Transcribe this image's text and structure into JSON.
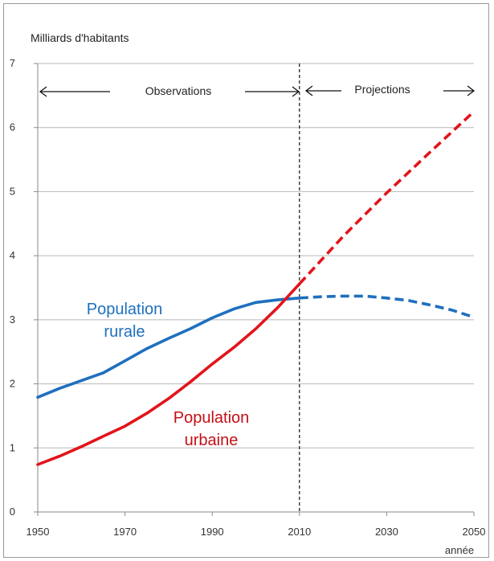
{
  "chart_data": {
    "type": "line",
    "ylabel": "Milliards d'habitants",
    "xlabel": "année",
    "xlim": [
      1950,
      2050
    ],
    "ylim": [
      0,
      7
    ],
    "x_ticks": [
      1950,
      1970,
      1990,
      2010,
      2030,
      2050
    ],
    "y_ticks": [
      0,
      1,
      2,
      3,
      4,
      5,
      6,
      7
    ],
    "grid": "horizontal",
    "divider_year": 2010,
    "annotations": {
      "observations": "Observations",
      "projections": "Projections"
    },
    "series": [
      {
        "name": "Population rurale",
        "label_lines": [
          "Population",
          "rurale"
        ],
        "color": "#1f6fbf",
        "observed": {
          "x": [
            1950,
            1955,
            1960,
            1965,
            1970,
            1975,
            1980,
            1985,
            1990,
            1995,
            2000,
            2005,
            2010
          ],
          "y": [
            1.79,
            1.93,
            2.05,
            2.17,
            2.36,
            2.55,
            2.71,
            2.86,
            3.03,
            3.17,
            3.27,
            3.31,
            3.34
          ]
        },
        "projected": {
          "x": [
            2010,
            2015,
            2020,
            2025,
            2030,
            2035,
            2040,
            2045,
            2050
          ],
          "y": [
            3.34,
            3.36,
            3.37,
            3.37,
            3.34,
            3.3,
            3.23,
            3.15,
            3.04
          ]
        }
      },
      {
        "name": "Population urbaine",
        "label_lines": [
          "Population",
          "urbaine"
        ],
        "color": "#e2141b",
        "observed": {
          "x": [
            1950,
            1955,
            1960,
            1965,
            1970,
            1975,
            1980,
            1985,
            1990,
            1995,
            2000,
            2005,
            2010
          ],
          "y": [
            0.74,
            0.87,
            1.02,
            1.18,
            1.34,
            1.54,
            1.77,
            2.03,
            2.31,
            2.57,
            2.86,
            3.19,
            3.56
          ]
        },
        "projected": {
          "x": [
            2010,
            2020,
            2030,
            2040,
            2050
          ],
          "y": [
            3.56,
            4.3,
            4.98,
            5.62,
            6.25
          ]
        }
      }
    ]
  }
}
